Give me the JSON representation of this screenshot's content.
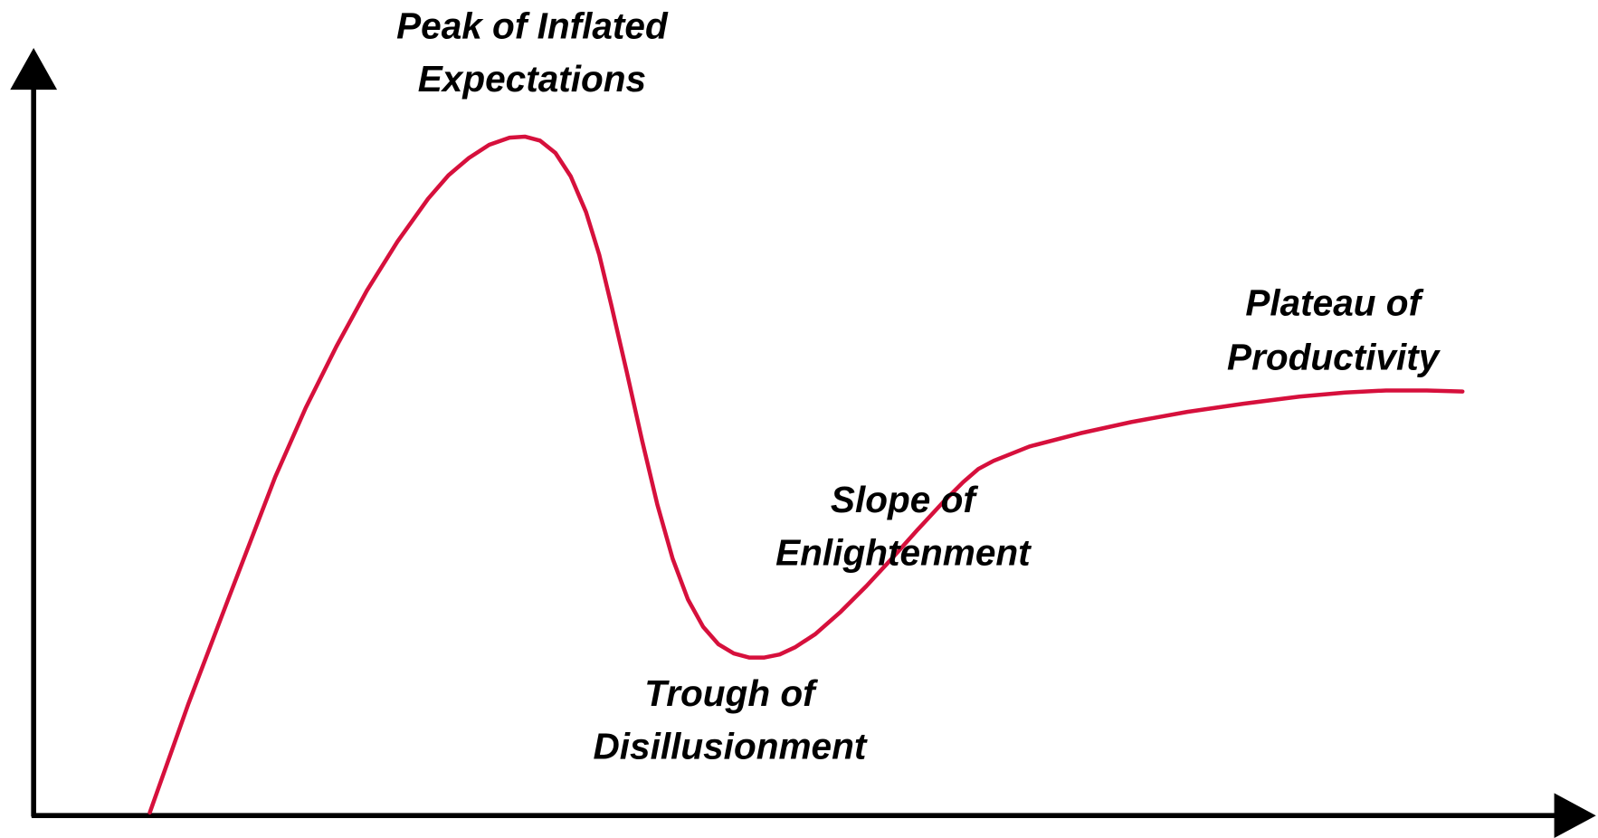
{
  "labels": [
    {
      "lines": [
        "Peak of Inflated",
        "Expectations"
      ]
    },
    {
      "lines": [
        "Slope of",
        "Enlightenment"
      ]
    },
    {
      "lines": [
        "Trough of",
        "Disillusionment"
      ]
    },
    {
      "lines": [
        "Plateau of",
        "Productivity"
      ]
    }
  ]
}
